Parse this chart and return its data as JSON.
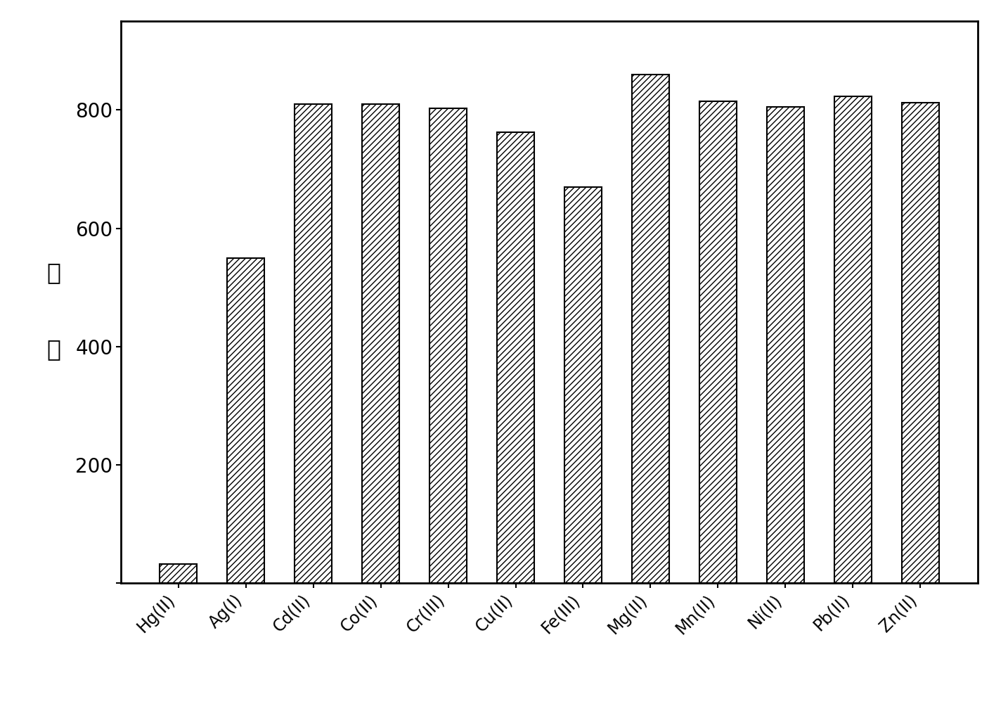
{
  "categories": [
    "Hg(II)",
    "Ag(I)",
    "Cd(II)",
    "Co(II)",
    "Cr(III)",
    "Cu(II)",
    "Fe(III)",
    "Mg(II)",
    "Mn(II)",
    "Ni(II)",
    "Pb(II)",
    "Zn(II)"
  ],
  "values": [
    32,
    550,
    810,
    810,
    803,
    762,
    670,
    860,
    815,
    805,
    823,
    812
  ],
  "ylabel_chars": [
    "强",
    "度"
  ],
  "ylim": [
    0,
    950
  ],
  "yticks": [
    0,
    200,
    400,
    600,
    800
  ],
  "bar_facecolor": "white",
  "bar_edgecolor": "black",
  "hatch": "////",
  "bar_linewidth": 1.5,
  "background_color": "white",
  "axes_linewidth": 2.0,
  "tick_fontsize": 20,
  "ylabel_fontsize": 24,
  "xlabel_fontsize": 17,
  "bar_width": 0.55
}
